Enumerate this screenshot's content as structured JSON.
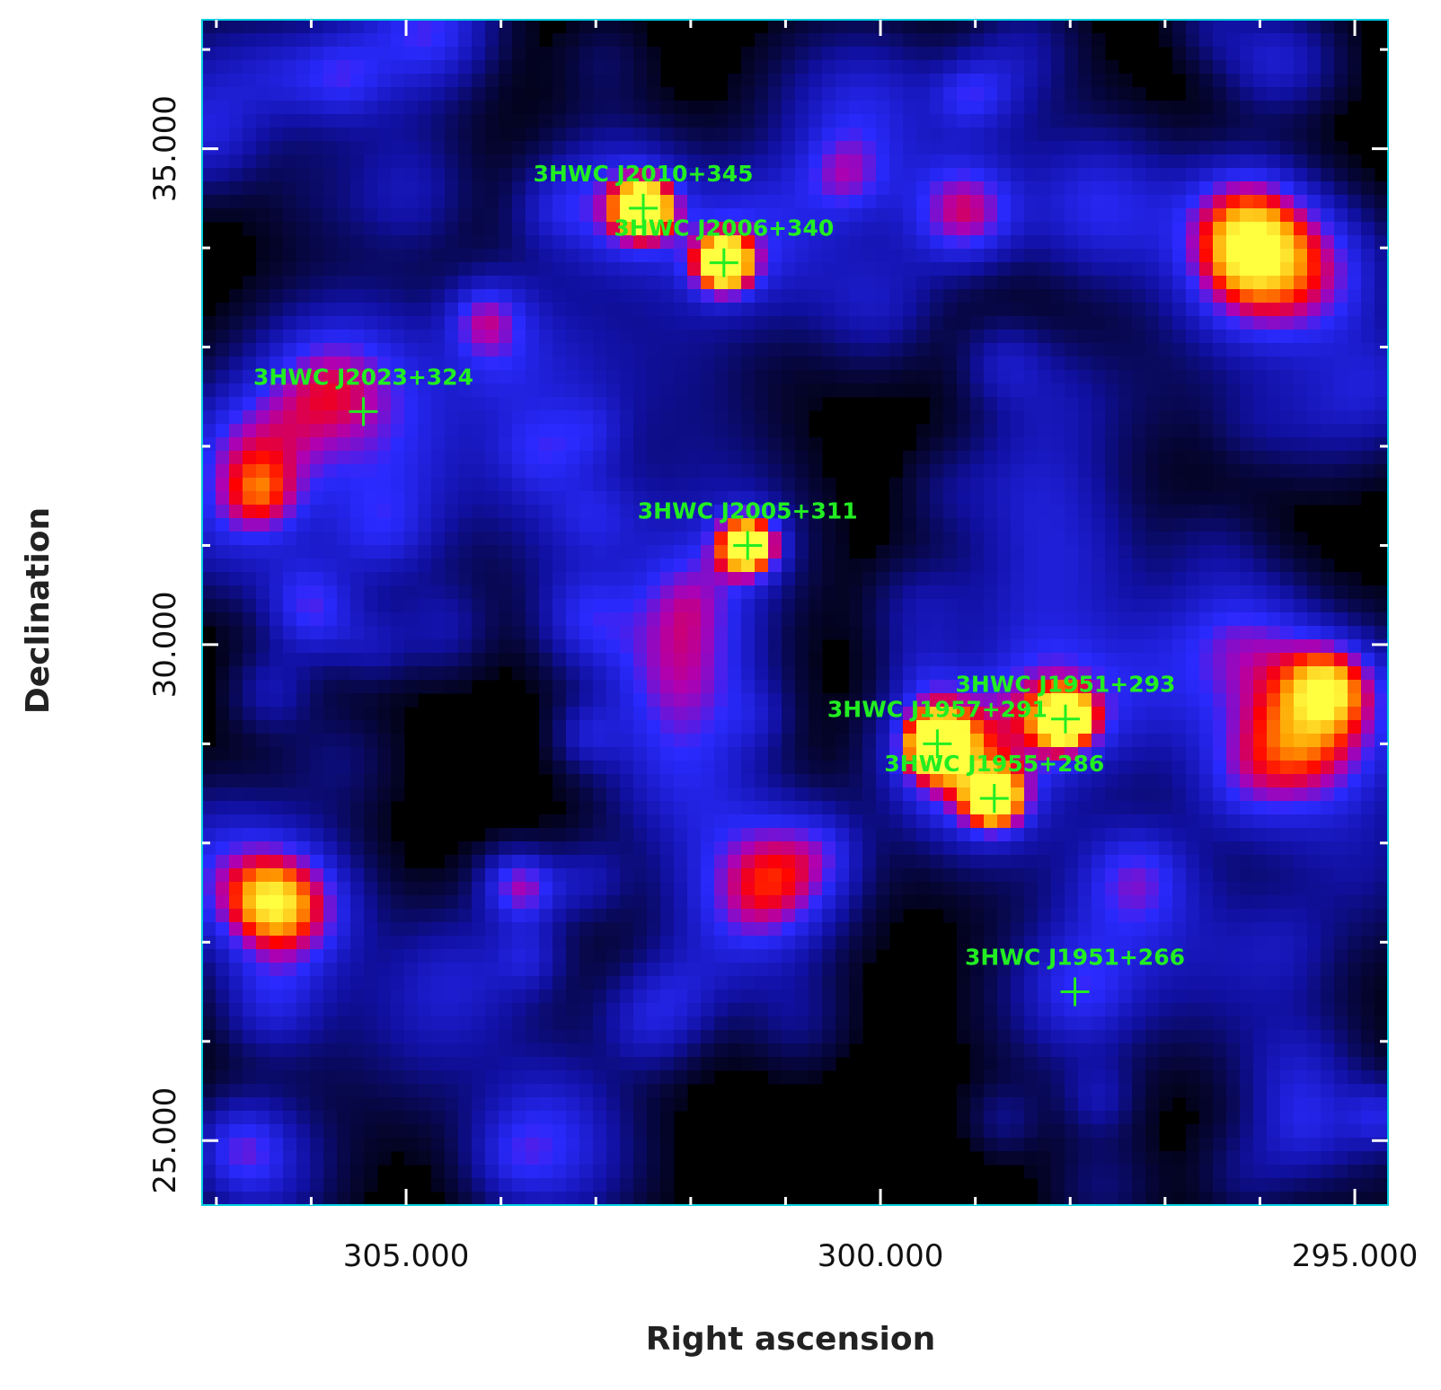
{
  "chart_data": {
    "type": "heatmap",
    "xlabel": "Right ascension",
    "ylabel": "Declination",
    "xlim": [
      307.15,
      294.65
    ],
    "ylim": [
      24.35,
      36.3
    ],
    "x_ticks": [
      {
        "value": 305.0,
        "label": "305.000"
      },
      {
        "value": 300.0,
        "label": "300.000"
      },
      {
        "value": 295.0,
        "label": "295.000"
      }
    ],
    "y_ticks": [
      {
        "value": 35.0,
        "label": "35.000"
      },
      {
        "value": 30.0,
        "label": "30.000"
      },
      {
        "value": 25.0,
        "label": "25.000"
      }
    ],
    "minor_step": 1.0,
    "colormap": [
      "#000000",
      "#1010a0",
      "#2a2aff",
      "#b000b0",
      "#ff0000",
      "#ffa000",
      "#ffff40"
    ],
    "sources": [
      {
        "name": "3HWC J2010+345",
        "ra": 302.5,
        "dec": 34.4,
        "peak": 0.95
      },
      {
        "name": "3HWC J2006+340",
        "ra": 301.65,
        "dec": 33.85,
        "peak": 1.0
      },
      {
        "name": "3HWC J2023+324",
        "ra": 305.45,
        "dec": 32.35,
        "peak": 0.3
      },
      {
        "name": "3HWC J2005+311",
        "ra": 301.4,
        "dec": 31.0,
        "peak": 1.0
      },
      {
        "name": "3HWC J1951+293",
        "ra": 298.05,
        "dec": 29.25,
        "peak": 0.92
      },
      {
        "name": "3HWC J1957+291",
        "ra": 299.4,
        "dec": 29.0,
        "peak": 0.9
      },
      {
        "name": "3HWC J1955+286",
        "ra": 298.8,
        "dec": 28.45,
        "peak": 0.88
      },
      {
        "name": "3HWC J1951+266",
        "ra": 297.95,
        "dec": 26.5,
        "peak": 0.35
      }
    ],
    "frame_color": "#00ccdd",
    "marker_color": "#22ee22"
  }
}
